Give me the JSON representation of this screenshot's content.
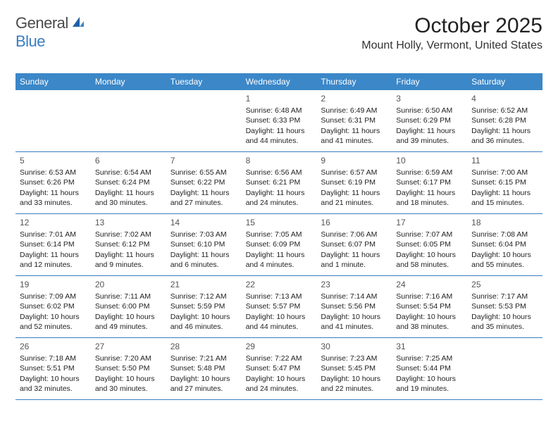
{
  "logo": {
    "word1": "General",
    "word2": "Blue"
  },
  "title": "October 2025",
  "location": "Mount Holly, Vermont, United States",
  "colors": {
    "header_bg": "#3b87c8",
    "header_text": "#ffffff",
    "rule": "#3b7dc0",
    "logo_gray": "#4a4a4a",
    "logo_blue": "#3b7dc0",
    "text": "#222222",
    "daynum": "#555555",
    "page_bg": "#ffffff"
  },
  "daynames": [
    "Sunday",
    "Monday",
    "Tuesday",
    "Wednesday",
    "Thursday",
    "Friday",
    "Saturday"
  ],
  "layout": {
    "first_weekday_index": 3,
    "days_in_month": 31,
    "columns": 7,
    "rows": 5
  },
  "typography": {
    "title_pt": 30,
    "location_pt": 16,
    "dayname_pt": 12,
    "daynum_pt": 12,
    "body_pt": 10.5
  },
  "days": [
    {
      "n": 1,
      "sunrise": "6:48 AM",
      "sunset": "6:33 PM",
      "daylight": "11 hours and 44 minutes."
    },
    {
      "n": 2,
      "sunrise": "6:49 AM",
      "sunset": "6:31 PM",
      "daylight": "11 hours and 41 minutes."
    },
    {
      "n": 3,
      "sunrise": "6:50 AM",
      "sunset": "6:29 PM",
      "daylight": "11 hours and 39 minutes."
    },
    {
      "n": 4,
      "sunrise": "6:52 AM",
      "sunset": "6:28 PM",
      "daylight": "11 hours and 36 minutes."
    },
    {
      "n": 5,
      "sunrise": "6:53 AM",
      "sunset": "6:26 PM",
      "daylight": "11 hours and 33 minutes."
    },
    {
      "n": 6,
      "sunrise": "6:54 AM",
      "sunset": "6:24 PM",
      "daylight": "11 hours and 30 minutes."
    },
    {
      "n": 7,
      "sunrise": "6:55 AM",
      "sunset": "6:22 PM",
      "daylight": "11 hours and 27 minutes."
    },
    {
      "n": 8,
      "sunrise": "6:56 AM",
      "sunset": "6:21 PM",
      "daylight": "11 hours and 24 minutes."
    },
    {
      "n": 9,
      "sunrise": "6:57 AM",
      "sunset": "6:19 PM",
      "daylight": "11 hours and 21 minutes."
    },
    {
      "n": 10,
      "sunrise": "6:59 AM",
      "sunset": "6:17 PM",
      "daylight": "11 hours and 18 minutes."
    },
    {
      "n": 11,
      "sunrise": "7:00 AM",
      "sunset": "6:15 PM",
      "daylight": "11 hours and 15 minutes."
    },
    {
      "n": 12,
      "sunrise": "7:01 AM",
      "sunset": "6:14 PM",
      "daylight": "11 hours and 12 minutes."
    },
    {
      "n": 13,
      "sunrise": "7:02 AM",
      "sunset": "6:12 PM",
      "daylight": "11 hours and 9 minutes."
    },
    {
      "n": 14,
      "sunrise": "7:03 AM",
      "sunset": "6:10 PM",
      "daylight": "11 hours and 6 minutes."
    },
    {
      "n": 15,
      "sunrise": "7:05 AM",
      "sunset": "6:09 PM",
      "daylight": "11 hours and 4 minutes."
    },
    {
      "n": 16,
      "sunrise": "7:06 AM",
      "sunset": "6:07 PM",
      "daylight": "11 hours and 1 minute."
    },
    {
      "n": 17,
      "sunrise": "7:07 AM",
      "sunset": "6:05 PM",
      "daylight": "10 hours and 58 minutes."
    },
    {
      "n": 18,
      "sunrise": "7:08 AM",
      "sunset": "6:04 PM",
      "daylight": "10 hours and 55 minutes."
    },
    {
      "n": 19,
      "sunrise": "7:09 AM",
      "sunset": "6:02 PM",
      "daylight": "10 hours and 52 minutes."
    },
    {
      "n": 20,
      "sunrise": "7:11 AM",
      "sunset": "6:00 PM",
      "daylight": "10 hours and 49 minutes."
    },
    {
      "n": 21,
      "sunrise": "7:12 AM",
      "sunset": "5:59 PM",
      "daylight": "10 hours and 46 minutes."
    },
    {
      "n": 22,
      "sunrise": "7:13 AM",
      "sunset": "5:57 PM",
      "daylight": "10 hours and 44 minutes."
    },
    {
      "n": 23,
      "sunrise": "7:14 AM",
      "sunset": "5:56 PM",
      "daylight": "10 hours and 41 minutes."
    },
    {
      "n": 24,
      "sunrise": "7:16 AM",
      "sunset": "5:54 PM",
      "daylight": "10 hours and 38 minutes."
    },
    {
      "n": 25,
      "sunrise": "7:17 AM",
      "sunset": "5:53 PM",
      "daylight": "10 hours and 35 minutes."
    },
    {
      "n": 26,
      "sunrise": "7:18 AM",
      "sunset": "5:51 PM",
      "daylight": "10 hours and 32 minutes."
    },
    {
      "n": 27,
      "sunrise": "7:20 AM",
      "sunset": "5:50 PM",
      "daylight": "10 hours and 30 minutes."
    },
    {
      "n": 28,
      "sunrise": "7:21 AM",
      "sunset": "5:48 PM",
      "daylight": "10 hours and 27 minutes."
    },
    {
      "n": 29,
      "sunrise": "7:22 AM",
      "sunset": "5:47 PM",
      "daylight": "10 hours and 24 minutes."
    },
    {
      "n": 30,
      "sunrise": "7:23 AM",
      "sunset": "5:45 PM",
      "daylight": "10 hours and 22 minutes."
    },
    {
      "n": 31,
      "sunrise": "7:25 AM",
      "sunset": "5:44 PM",
      "daylight": "10 hours and 19 minutes."
    }
  ],
  "labels": {
    "sunrise_prefix": "Sunrise: ",
    "sunset_prefix": "Sunset: ",
    "daylight_prefix": "Daylight: "
  }
}
